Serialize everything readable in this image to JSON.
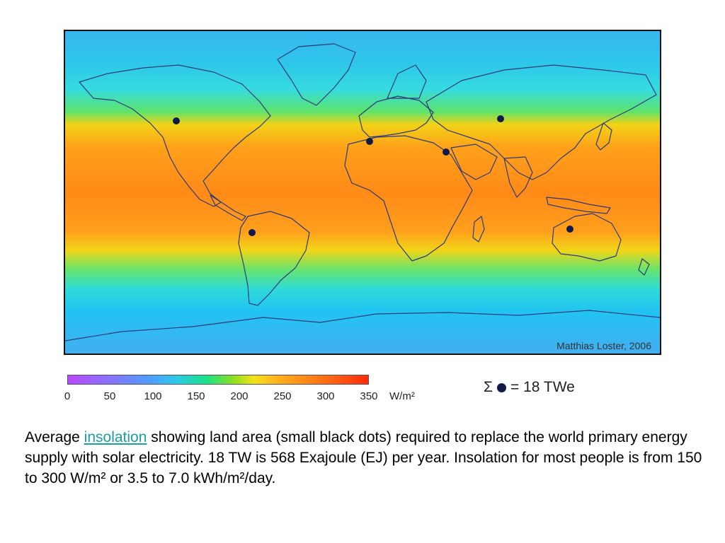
{
  "map": {
    "credit": "Matthias Loster, 2006",
    "colors": {
      "land_outline": "#2b3a7a",
      "dot": "#0f1a4a",
      "frame": "#111111"
    },
    "dots": [
      {
        "name": "north-america"
      },
      {
        "name": "south-america"
      },
      {
        "name": "sahara"
      },
      {
        "name": "arabia"
      },
      {
        "name": "central-asia"
      },
      {
        "name": "australia"
      }
    ]
  },
  "scale": {
    "ticks": [
      "0",
      "50",
      "100",
      "150",
      "200",
      "250",
      "300",
      "350"
    ],
    "min": 0,
    "max": 350,
    "unit": "W/m²"
  },
  "legend": {
    "symbol": "Σ",
    "text": "= 18 TWe"
  },
  "caption": {
    "prefix": "Average ",
    "link": "insolation",
    "suffix": " showing land area (small black dots) required to replace the world primary energy supply with solar electricity. 18 TW is 568 Exajoule (EJ) per year. Insolation for most people is from 150 to 300 W/m² or 3.5 to 7.0 kWh/m²/day."
  }
}
